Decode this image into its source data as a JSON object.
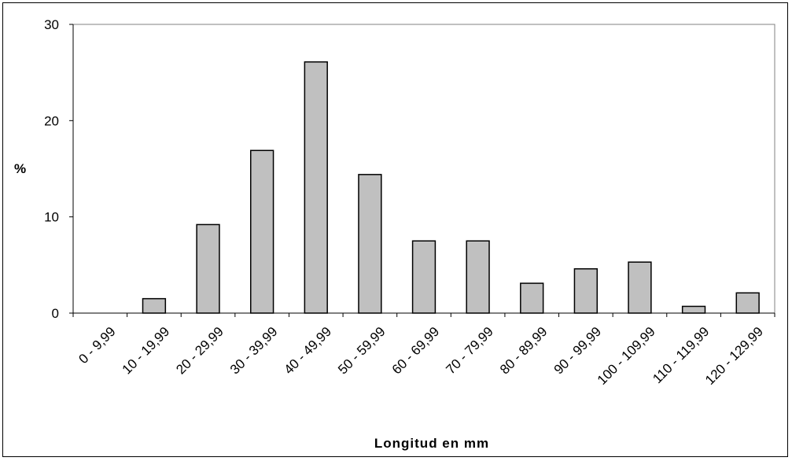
{
  "chart_data": {
    "type": "bar",
    "title": "",
    "xlabel": "Longitud en mm",
    "ylabel": "%",
    "ylim": [
      0,
      30
    ],
    "yticks": [
      0,
      10,
      20,
      30
    ],
    "grid": false,
    "legend": "none",
    "categories": [
      "0 - 9,99",
      "10 - 19,99",
      "20 - 29,99",
      "30 - 39,99",
      "40 - 49,99",
      "50 - 59,99",
      "60 - 69,99",
      "70 - 79,99",
      "80 - 89,99",
      "90 - 99,99",
      "100 - 109,99",
      "110 - 119,99",
      "120 - 129,99"
    ],
    "values": [
      0,
      1.5,
      9.2,
      16.9,
      26.1,
      14.4,
      7.5,
      7.5,
      3.1,
      4.6,
      5.3,
      0.7,
      2.1
    ],
    "colors": {
      "bar_fill": "#c0c0c0",
      "bar_stroke": "#000000"
    }
  }
}
